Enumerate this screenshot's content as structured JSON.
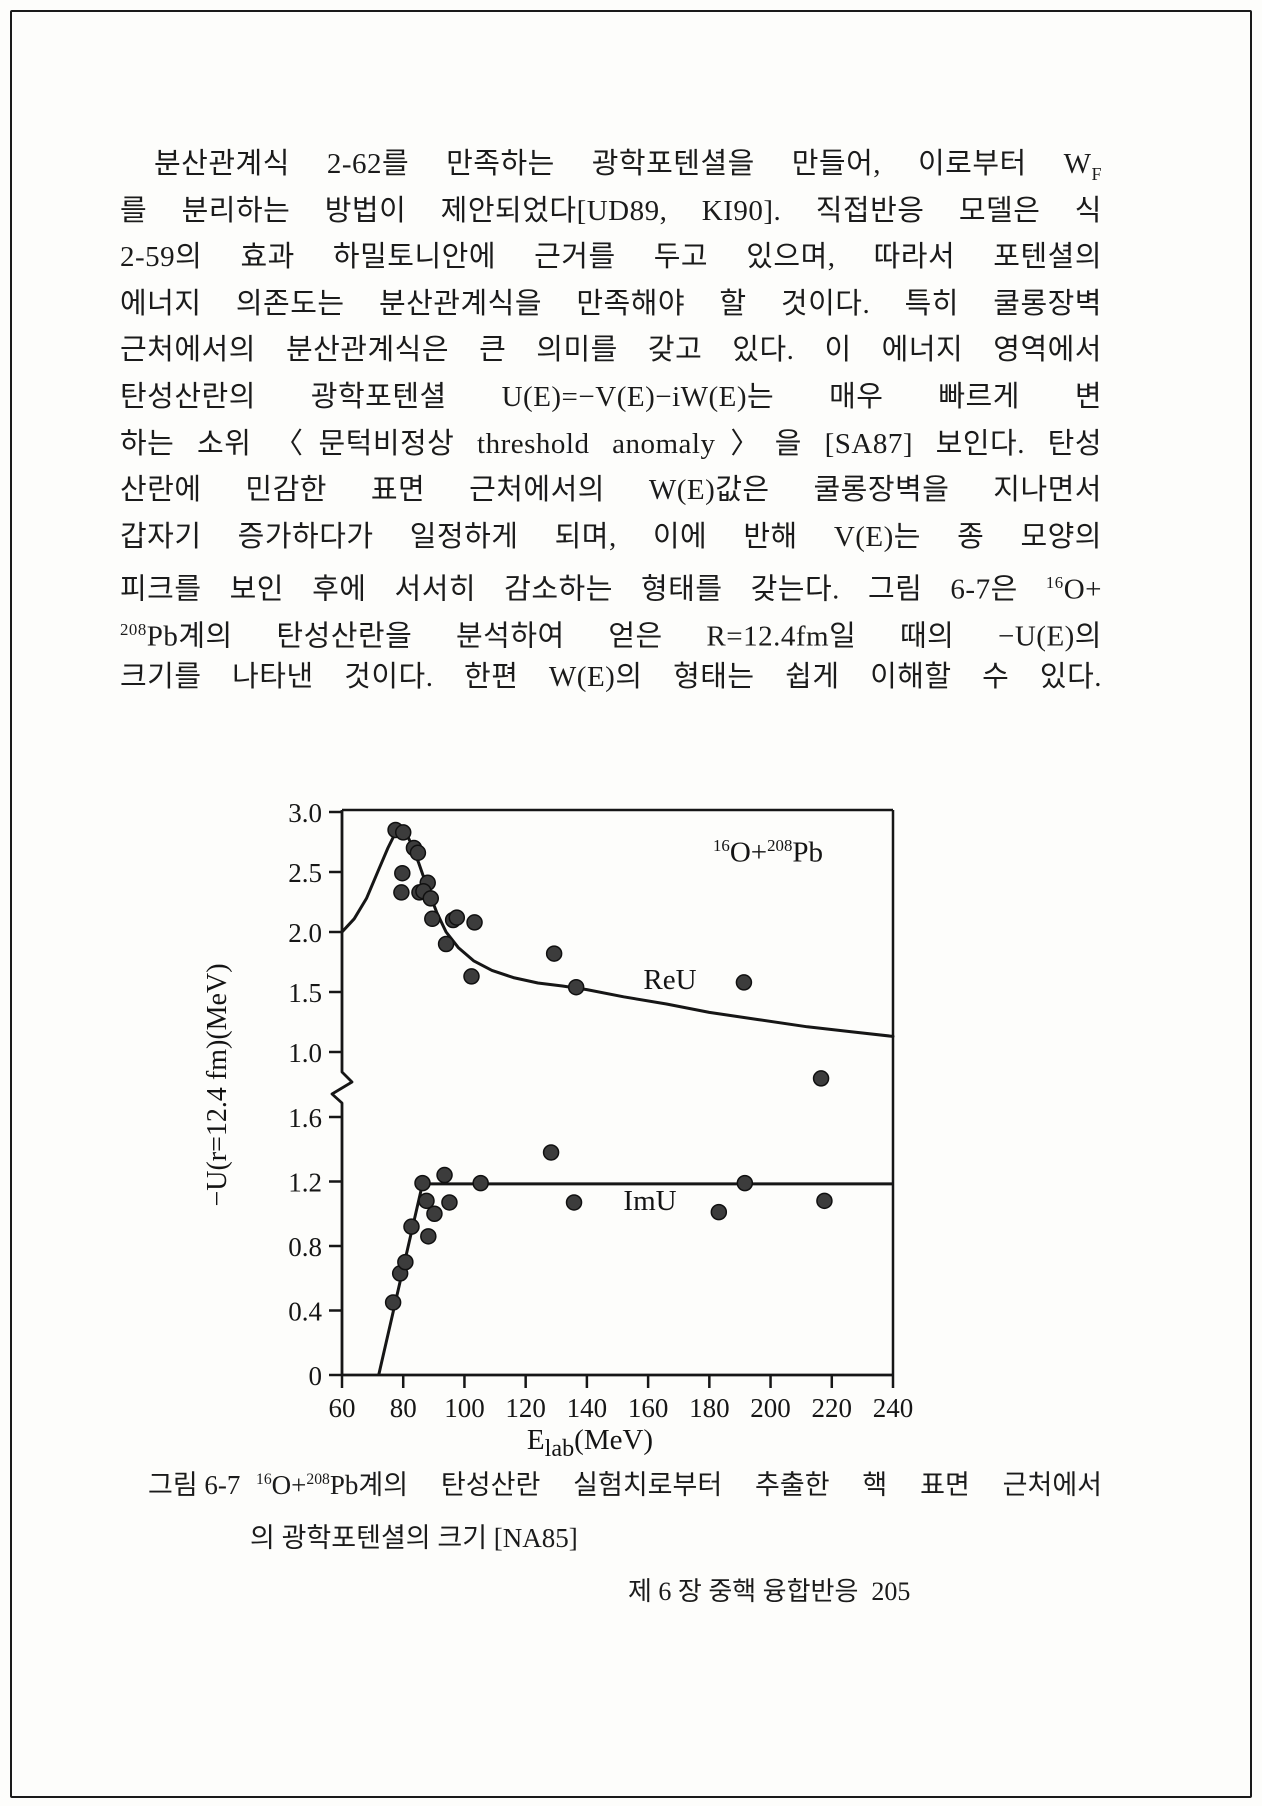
{
  "page": {
    "paragraph_lines": [
      "분산관계식 2-62를 만족하는 광학포텐셜을 만들어, 이로부터 W<sub>F</sub>",
      "를 분리하는 방법이 제안되었다[UD89, KI90]. 직접반응 모델은 식",
      "2-59의 효과 하밀토니안에 근거를 두고 있으며, 따라서 포텐셜의",
      "에너지 의존도는 분산관계식을 만족해야 할 것이다. 특히 쿨롱장벽",
      "근처에서의 분산관계식은 큰 의미를 갖고 있다. 이 에너지 영역에서",
      "탄성산란의 광학포텐셜 U(E)=−V(E)−iW(E)는 매우 빠르게 변",
      "하는 소위 〈문턱비정상 threshold anomaly〉을 [SA87] 보인다. 탄성",
      "산란에 민감한 표면 근처에서의 W(E)값은 쿨롱장벽을 지나면서",
      "갑자기 증가하다가 일정하게 되며, 이에 반해 V(E)는 종 모양의",
      "피크를 보인 후에 서서히 감소하는 형태를 갖는다. 그림 6-7은 <sup>16</sup>O+",
      "<sup>208</sup>Pb계의 탄성산란을 분석하여 얻은 R=12.4fm일 때의 −U(E)의",
      "크기를 나타낸 것이다. 한편 W(E)의 형태는 쉽게 이해할 수 있다."
    ],
    "figure_caption": {
      "label": "그림 6-7",
      "line1": "<sup>16</sup>O+<sup>208</sup>Pb계의 탄성산란 실험치로부터 추출한 핵 표면 근처에서",
      "line2": "의 광학포텐셜의 크기 [NA85]"
    },
    "footer": "제 6 장 중핵 융합반응  205"
  },
  "chart_data": {
    "type": "scatter",
    "system_label_html": "<sup>16</sup>O+<sup>208</sup>Pb",
    "xlabel_html": "E<sub>lab</sub>(MeV)",
    "ylabel": "−U(r=12.4 fm)(MeV)",
    "axis_break": true,
    "x_ticks": [
      {
        "v": 60,
        "label": "60"
      },
      {
        "v": 80,
        "label": "80"
      },
      {
        "v": 100,
        "label": "100"
      },
      {
        "v": 120,
        "label": "120"
      },
      {
        "v": 140,
        "label": "140"
      },
      {
        "v": 160,
        "label": "160"
      },
      {
        "v": 180,
        "label": "180"
      },
      {
        "v": 200,
        "label": "200"
      },
      {
        "v": 220,
        "label": "220"
      },
      {
        "v": 240,
        "label": "240"
      }
    ],
    "x_range": [
      60,
      240
    ],
    "upper_panel": {
      "series_label": "ReU",
      "yticks": [
        {
          "v": 3.0,
          "label": "3.0"
        },
        {
          "v": 2.5,
          "label": "2.5"
        },
        {
          "v": 2.0,
          "label": "2.0"
        },
        {
          "v": 1.5,
          "label": "1.5"
        },
        {
          "v": 1.0,
          "label": "1.0"
        }
      ],
      "curve": [
        [
          60,
          2.0
        ],
        [
          64,
          2.11
        ],
        [
          68,
          2.28
        ],
        [
          72,
          2.52
        ],
        [
          75,
          2.7
        ],
        [
          77.5,
          2.83
        ],
        [
          79,
          2.88
        ],
        [
          80.5,
          2.85
        ],
        [
          82.5,
          2.74
        ],
        [
          85,
          2.58
        ],
        [
          88,
          2.36
        ],
        [
          91,
          2.16
        ],
        [
          94,
          2.0
        ],
        [
          98,
          1.87
        ],
        [
          103,
          1.76
        ],
        [
          109,
          1.68
        ],
        [
          116,
          1.62
        ],
        [
          124,
          1.575
        ],
        [
          132,
          1.55
        ],
        [
          140,
          1.52
        ],
        [
          152,
          1.46
        ],
        [
          166,
          1.4
        ],
        [
          180,
          1.33
        ],
        [
          196,
          1.27
        ],
        [
          212,
          1.21
        ],
        [
          226,
          1.17
        ],
        [
          240,
          1.13
        ]
      ],
      "points": [
        [
          77.5,
          2.85
        ],
        [
          80,
          2.83
        ],
        [
          83.5,
          2.7
        ],
        [
          84.8,
          2.66
        ],
        [
          79.7,
          2.49
        ],
        [
          88,
          2.41
        ],
        [
          79.4,
          2.33
        ],
        [
          85.3,
          2.33
        ],
        [
          86.6,
          2.34
        ],
        [
          89,
          2.28
        ],
        [
          89.5,
          2.11
        ],
        [
          96.3,
          2.1
        ],
        [
          97.5,
          2.12
        ],
        [
          103.3,
          2.08
        ],
        [
          94,
          1.9
        ],
        [
          102.3,
          1.63
        ],
        [
          129.3,
          1.82
        ],
        [
          136.5,
          1.54
        ],
        [
          191.3,
          1.58
        ],
        [
          216.5,
          0.78
        ]
      ]
    },
    "lower_panel": {
      "series_label": "ImU",
      "yticks": [
        {
          "v": 1.6,
          "label": "1.6"
        },
        {
          "v": 1.2,
          "label": "1.2"
        },
        {
          "v": 0.8,
          "label": "0.8"
        },
        {
          "v": 0.4,
          "label": "0.4"
        },
        {
          "v": 0,
          "label": "0"
        }
      ],
      "line": [
        [
          72,
          0
        ],
        [
          86.3,
          1.185
        ],
        [
          240,
          1.185
        ]
      ],
      "points": [
        [
          76.7,
          0.45
        ],
        [
          79,
          0.63
        ],
        [
          80.7,
          0.7
        ],
        [
          82.7,
          0.92
        ],
        [
          88.2,
          0.86
        ],
        [
          90.2,
          1.0
        ],
        [
          87.6,
          1.08
        ],
        [
          95.1,
          1.07
        ],
        [
          86.3,
          1.19
        ],
        [
          93.5,
          1.24
        ],
        [
          105.3,
          1.19
        ],
        [
          128.3,
          1.38
        ],
        [
          135.8,
          1.07
        ],
        [
          183.1,
          1.01
        ],
        [
          191.6,
          1.19
        ],
        [
          217.6,
          1.08
        ]
      ]
    }
  }
}
